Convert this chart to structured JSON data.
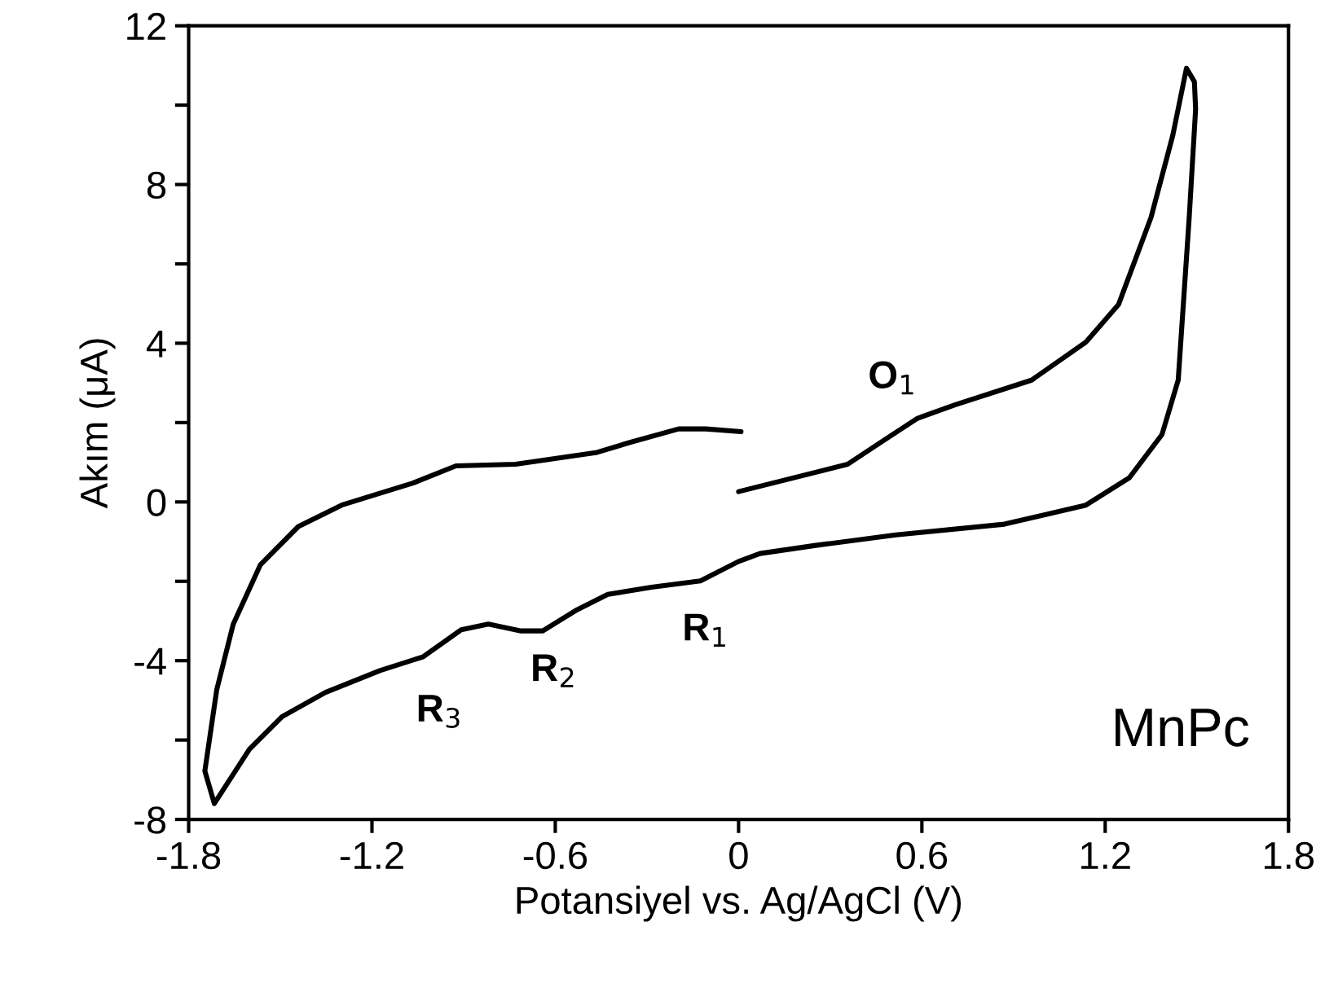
{
  "chart_data": {
    "type": "line",
    "xlabel": "Potansiyel vs. Ag/AgCl (V)",
    "ylabel": "Akım (μA)",
    "xlim": [
      -1.8,
      1.8
    ],
    "xticks": [
      -1.8,
      -1.2,
      -0.6,
      0,
      0.6,
      1.2,
      1.8
    ],
    "ylim": [
      -8,
      12
    ],
    "yticks": [
      -8,
      {
        "value": -6,
        "label": null
      },
      -4,
      {
        "value": -2,
        "label": null
      },
      0,
      {
        "value": 2,
        "label": null
      },
      4,
      {
        "value": 6,
        "label": null
      },
      8,
      {
        "value": 10,
        "label": null
      },
      12
    ],
    "grid": false,
    "legend": false,
    "marker": "none",
    "line_style": "solid",
    "series": [
      {
        "color": "#000000",
        "x": [
          0.0,
          0.357,
          0.479,
          0.586,
          0.71,
          0.959,
          1.137,
          1.244,
          1.35,
          1.421,
          1.466,
          1.492,
          1.496,
          1.475,
          1.439,
          1.386,
          1.279,
          1.137,
          0.87,
          0.515,
          0.248,
          0.07,
          -0.0,
          -0.125,
          -0.285,
          -0.428,
          -0.534,
          -0.641,
          -0.712,
          -0.819,
          -0.908,
          -1.032,
          -1.174,
          -1.352,
          -1.494,
          -1.601,
          -1.716,
          -1.747,
          -1.708,
          -1.654,
          -1.565,
          -1.441,
          -1.299,
          -1.174,
          -1.068,
          -0.925,
          -0.73,
          -0.463,
          -0.356,
          -0.196,
          -0.107,
          0.008
        ],
        "values": [
          0.26,
          0.95,
          1.57,
          2.11,
          2.45,
          3.07,
          4.03,
          4.98,
          7.17,
          9.23,
          10.93,
          10.59,
          9.9,
          7.17,
          3.07,
          1.7,
          0.61,
          -0.08,
          -0.56,
          -0.83,
          -1.1,
          -1.3,
          -1.5,
          -1.99,
          -2.15,
          -2.33,
          -2.74,
          -3.25,
          -3.25,
          -3.08,
          -3.22,
          -3.9,
          -4.25,
          -4.8,
          -5.41,
          -6.23,
          -7.6,
          -6.78,
          -4.73,
          -3.08,
          -1.58,
          -0.62,
          -0.08,
          0.22,
          0.47,
          0.91,
          0.95,
          1.25,
          1.5,
          1.84,
          1.84,
          1.77
        ]
      }
    ],
    "annotations": [
      "O$_{1}$",
      "R$_{1}$",
      "R$_{2}$",
      "R$_{3}$",
      "MnPc"
    ]
  }
}
